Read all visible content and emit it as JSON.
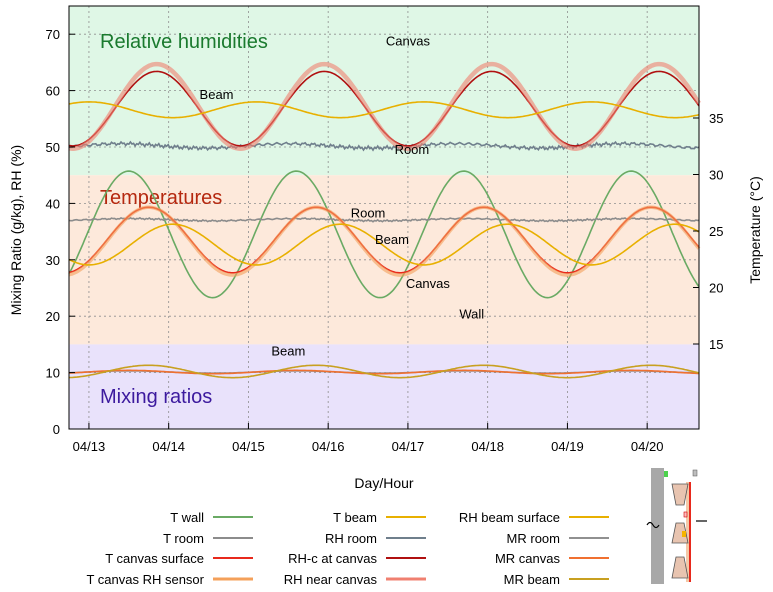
{
  "chart_data": {
    "type": "line",
    "xlabel": "Day/Hour",
    "ylabel_left": "Mixing Ratio (g/kg), RH (%)",
    "ylabel_right": "Temperature (°C)",
    "xlim_days": [
      12.75,
      20.65
    ],
    "x_ticks": [
      {
        "day": 13,
        "label": "04/13"
      },
      {
        "day": 14,
        "label": "04/14"
      },
      {
        "day": 15,
        "label": "04/15"
      },
      {
        "day": 16,
        "label": "04/16"
      },
      {
        "day": 17,
        "label": "04/17"
      },
      {
        "day": 18,
        "label": "04/18"
      },
      {
        "day": 19,
        "label": "04/19"
      },
      {
        "day": 20,
        "label": "04/20"
      }
    ],
    "ylim_left": [
      0,
      75
    ],
    "y_ticks_left": [
      0,
      10,
      20,
      30,
      40,
      50,
      60,
      70
    ],
    "ylim_right_range": [
      15,
      35
    ],
    "y_ticks_right": [
      15,
      20,
      25,
      30,
      35
    ],
    "grid": true,
    "bands": [
      {
        "name": "Relative humidities",
        "from": 45,
        "to": 75,
        "color": "#dff7e6",
        "label_color": "#1a7a2e"
      },
      {
        "name": "Temperatures",
        "from": 15,
        "to": 45,
        "color": "#fde9db",
        "label_color": "#b5280f"
      },
      {
        "name": "Mixing ratios",
        "from": 0,
        "to": 15,
        "color": "#e9e2fb",
        "label_color": "#3c1a9e"
      }
    ],
    "series": [
      {
        "name": "T wall",
        "color": "#6aaa64",
        "axis": "right",
        "mean": 24.7,
        "amp": 5.6,
        "peak_day": 15.6,
        "points_day": [
          13,
          13.5,
          14,
          14.5,
          15,
          15.5,
          16,
          16.5,
          17,
          17.5,
          18,
          18.5,
          19,
          19.5,
          20,
          20.5
        ],
        "points": [
          19.4,
          17.7,
          17.1,
          21.0,
          28.2,
          30.0,
          28.2,
          21.5,
          17.6,
          19.0,
          17.0,
          21.3,
          28.0,
          30.2,
          29.7,
          23.5
        ]
      },
      {
        "name": "T room",
        "color": "#8c8c8c",
        "axis": "right",
        "mean": 26.0,
        "amp": 0.1,
        "peak_day": 15.6,
        "points_day": [
          13,
          14,
          15,
          16,
          17,
          18,
          19,
          20
        ],
        "points": [
          26.0,
          26.0,
          26.0,
          26.0,
          26.0,
          26.0,
          26.0,
          26.0
        ]
      },
      {
        "name": "T canvas surface",
        "color": "#e8291c",
        "axis": "right",
        "mean": 24.2,
        "amp": 2.9,
        "peak_day": 15.85,
        "points_day": [
          13,
          13.5,
          14,
          14.5,
          15,
          15.5,
          16,
          16.5,
          17,
          17.5,
          18,
          18.5,
          19,
          19.5,
          20,
          20.5
        ],
        "points": [
          24.3,
          22.1,
          21.3,
          22.6,
          25.0,
          26.8,
          26.6,
          24.3,
          22.1,
          21.3,
          22.1,
          24.4,
          26.5,
          27.0,
          26.0,
          24.0
        ]
      },
      {
        "name": "T canvas RH sensor",
        "color": "#f4a05a",
        "axis": "right",
        "mean": 24.1,
        "amp": 3.0,
        "peak_day": 15.85,
        "points_day": [
          13,
          13.5,
          14,
          14.5,
          15,
          15.5,
          16,
          16.5,
          17,
          17.5,
          18,
          18.5,
          19,
          19.5,
          20,
          20.5
        ],
        "points": [
          24.2,
          22.0,
          21.1,
          22.5,
          25.0,
          26.8,
          26.7,
          24.3,
          22.0,
          21.1,
          22.0,
          24.5,
          26.5,
          27.1,
          26.0,
          23.9
        ]
      },
      {
        "name": "T beam",
        "color": "#e8b000",
        "axis": "right",
        "mean": 23.8,
        "amp": 1.8,
        "peak_day": 16.15,
        "points_day": [
          13,
          13.5,
          14,
          14.5,
          15,
          15.5,
          16,
          16.5,
          17,
          17.5,
          18,
          18.5,
          19,
          19.5,
          20,
          20.5
        ],
        "points": [
          24.9,
          23.7,
          22.5,
          22.5,
          23.9,
          25.1,
          25.7,
          24.9,
          23.5,
          22.2,
          22.1,
          23.4,
          24.8,
          25.6,
          25.4,
          24.2
        ]
      },
      {
        "name": "RH room",
        "color": "#6f7f8c",
        "axis": "left",
        "mean": 50.2,
        "amp": 0.4,
        "peak_day": 15.5,
        "points_day": [
          13,
          14,
          15,
          16,
          17,
          18,
          19,
          20
        ],
        "points": [
          49.7,
          50.2,
          50.6,
          50.3,
          50.4,
          50.8,
          50.5,
          50.8
        ]
      },
      {
        "name": "RH-c at canvas",
        "color": "#b01010",
        "axis": "left",
        "mean": 56.8,
        "amp": 6.6,
        "peak_day": 13.85,
        "points_day": [
          13,
          13.5,
          14,
          14.5,
          15,
          15.5,
          16,
          16.5,
          17,
          17.5,
          18,
          18.5,
          19,
          19.5,
          20,
          20.5
        ],
        "points": [
          55.3,
          61.0,
          63.1,
          60.3,
          53.4,
          50.5,
          50.6,
          54.6,
          59.6,
          62.8,
          63.3,
          59.1,
          51.1,
          50.3,
          51.0,
          54.2
        ]
      },
      {
        "name": "RH near canvas",
        "color": "#f08070",
        "axis": "left",
        "mean": 57.2,
        "amp": 7.5,
        "peak_day": 13.85,
        "points_day": [
          13,
          13.5,
          14,
          14.5,
          15,
          15.5,
          16,
          16.5,
          17,
          17.5,
          18,
          18.5,
          19,
          19.5,
          20,
          20.5
        ],
        "points": [
          56.0,
          62.5,
          64.8,
          62.0,
          54.0,
          50.5,
          50.4,
          55.0,
          61.0,
          64.5,
          65.0,
          60.5,
          51.5,
          50.0,
          50.8,
          55.0
        ]
      },
      {
        "name": "RH beam surface",
        "color": "#e8b000",
        "axis": "left",
        "mean": 56.6,
        "amp": 1.4,
        "peak_day": 15.1,
        "points_day": [
          13,
          13.5,
          14,
          14.5,
          15,
          15.5,
          16,
          16.5,
          17,
          17.5,
          18,
          18.5,
          19,
          19.5,
          20,
          20.5
        ],
        "points": [
          54.5,
          54.6,
          55.4,
          56.9,
          57.6,
          57.8,
          57.4,
          56.3,
          55.5,
          55.7,
          56.4,
          57.5,
          58.2,
          57.7,
          57.0,
          56.3
        ]
      },
      {
        "name": "MR room",
        "color": "#909090",
        "axis": "left",
        "mean": 10.1,
        "amp": 0.2,
        "peak_day": 15.6,
        "points_day": [
          13,
          14,
          15,
          16,
          17,
          18,
          19,
          20
        ],
        "points": [
          10.0,
          10.1,
          10.2,
          10.1,
          10.1,
          10.2,
          10.3,
          10.2
        ]
      },
      {
        "name": "MR canvas",
        "color": "#f07030",
        "axis": "left",
        "mean": 10.1,
        "amp": 0.3,
        "peak_day": 15.6,
        "points_day": [
          13,
          14,
          15,
          16,
          17,
          18,
          19,
          20
        ],
        "points": [
          10.0,
          9.9,
          10.4,
          10.1,
          9.9,
          10.3,
          10.1,
          10.0
        ]
      },
      {
        "name": "MR beam",
        "color": "#c8a020",
        "axis": "left",
        "mean": 10.2,
        "amp": 1.1,
        "peak_day": 15.85,
        "points_day": [
          13,
          13.5,
          14,
          14.5,
          15,
          15.5,
          16,
          16.5,
          17,
          17.5,
          18,
          18.5,
          19,
          19.5,
          20,
          20.5
        ],
        "points": [
          9.8,
          9.3,
          9.2,
          9.6,
          10.5,
          11.1,
          11.2,
          10.6,
          9.6,
          9.2,
          9.3,
          9.8,
          10.6,
          11.4,
          11.5,
          10.8
        ]
      }
    ],
    "annotations": [
      {
        "text": "Canvas",
        "x_day": 17.0,
        "y": 68.0
      },
      {
        "text": "Beam",
        "x_day": 14.6,
        "y": 58.5
      },
      {
        "text": "Room",
        "x_day": 17.05,
        "y": 48.8
      },
      {
        "text": "Room",
        "x_day": 16.5,
        "y": 37.5
      },
      {
        "text": "Beam",
        "x_day": 16.8,
        "y": 32.8
      },
      {
        "text": "Canvas",
        "x_day": 17.25,
        "y": 25.0
      },
      {
        "text": "Wall",
        "x_day": 17.8,
        "y": 19.6
      },
      {
        "text": "Beam",
        "x_day": 15.5,
        "y": 13.0
      }
    ],
    "legend_placement": "bottom",
    "legend": [
      [
        "T wall",
        "T beam",
        "RH beam surface"
      ],
      [
        "T room",
        "RH room",
        "MR room"
      ],
      [
        "T canvas surface",
        "RH-c at canvas",
        "MR canvas"
      ],
      [
        "T canvas RH sensor",
        "RH near canvas",
        "MR beam"
      ]
    ]
  }
}
